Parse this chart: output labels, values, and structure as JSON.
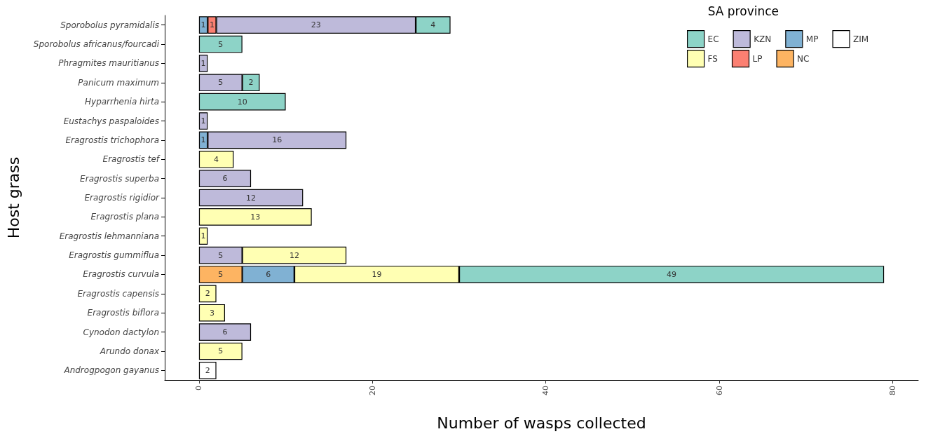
{
  "chart_data": {
    "type": "bar",
    "orientation": "horizontal",
    "stacked": true,
    "xlabel": "Number of wasps collected",
    "ylabel": "Host grass",
    "legend_title": "SA province",
    "categories": [
      "Sporobolus pyramidalis",
      "Sporobolus africanus/fourcadi",
      "Phragmites mauritianus",
      "Panicum maximum",
      "Hyparrhenia hirta",
      "Eustachys paspaloides",
      "Eragrostis trichophora",
      "Eragrostis tef",
      "Eragrostis superba",
      "Eragrostis rigidior",
      "Eragrostis plana",
      "Eragrostis lehmanniana",
      "Eragrostis gummiflua",
      "Eragrostis curvula",
      "Eragrostis capensis",
      "Eragrostis biflora",
      "Cynodon dactylon",
      "Arundo donax",
      "Androgpogon gayanus"
    ],
    "series": [
      {
        "name": "ZIM",
        "color": "#ffffff",
        "values": [
          null,
          null,
          null,
          null,
          null,
          null,
          null,
          null,
          null,
          null,
          null,
          null,
          null,
          null,
          null,
          null,
          null,
          null,
          2
        ]
      },
      {
        "name": "NC",
        "color": "#fdb462",
        "values": [
          null,
          null,
          null,
          null,
          null,
          null,
          null,
          null,
          null,
          null,
          null,
          null,
          null,
          5,
          null,
          null,
          null,
          null,
          null
        ]
      },
      {
        "name": "MP",
        "color": "#80b1d3",
        "values": [
          1,
          null,
          null,
          null,
          null,
          null,
          1,
          null,
          null,
          null,
          null,
          null,
          null,
          6,
          null,
          null,
          null,
          null,
          null
        ]
      },
      {
        "name": "LP",
        "color": "#fb8072",
        "values": [
          1,
          null,
          null,
          null,
          null,
          null,
          null,
          null,
          null,
          null,
          null,
          null,
          null,
          null,
          null,
          null,
          null,
          null,
          null
        ]
      },
      {
        "name": "KZN",
        "color": "#bebada",
        "values": [
          23,
          null,
          1,
          5,
          null,
          1,
          16,
          null,
          6,
          12,
          null,
          null,
          5,
          null,
          null,
          null,
          6,
          null,
          null
        ]
      },
      {
        "name": "FS",
        "color": "#ffffb3",
        "values": [
          null,
          null,
          null,
          null,
          null,
          null,
          null,
          4,
          null,
          null,
          13,
          1,
          12,
          19,
          2,
          3,
          null,
          5,
          null
        ]
      },
      {
        "name": "EC",
        "color": "#8dd3c7",
        "values": [
          4,
          5,
          null,
          2,
          10,
          null,
          null,
          null,
          null,
          null,
          null,
          null,
          null,
          49,
          null,
          null,
          null,
          null,
          null
        ]
      }
    ],
    "xlim": [
      -3.95,
      82.95
    ],
    "xticks": [
      0,
      20,
      40,
      60,
      80
    ],
    "data_labels": true,
    "grid": false,
    "legend": "top right"
  }
}
